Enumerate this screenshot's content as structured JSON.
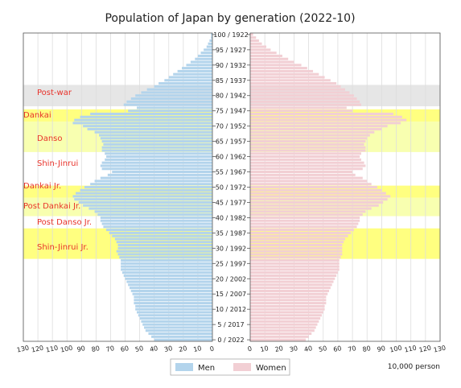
{
  "chart_data": {
    "type": "bar",
    "title": "Population of Japan by generation (2022-10)",
    "unit": "10,000 person",
    "series": [
      {
        "name": "Men",
        "color": "#b3d4ec"
      },
      {
        "name": "Women",
        "color": "#f2cfd4"
      }
    ],
    "axis_ticks": [
      0,
      10,
      20,
      30,
      40,
      50,
      60,
      70,
      80,
      90,
      100,
      110,
      120,
      130
    ],
    "xlim": [
      0,
      130
    ],
    "age_labels": [
      {
        "age": 100,
        "label": "100 / 1922"
      },
      {
        "age": 95,
        "label": "95  / 1927"
      },
      {
        "age": 90,
        "label": "90  / 1932"
      },
      {
        "age": 85,
        "label": "85  / 1937"
      },
      {
        "age": 80,
        "label": "80  / 1942"
      },
      {
        "age": 75,
        "label": "75  / 1947"
      },
      {
        "age": 70,
        "label": "70  / 1952"
      },
      {
        "age": 65,
        "label": "65  / 1957"
      },
      {
        "age": 60,
        "label": "60  / 1962"
      },
      {
        "age": 55,
        "label": "55  / 1967"
      },
      {
        "age": 50,
        "label": "50  / 1972"
      },
      {
        "age": 45,
        "label": "45  / 1977"
      },
      {
        "age": 40,
        "label": "40  / 1982"
      },
      {
        "age": 35,
        "label": "35  / 1987"
      },
      {
        "age": 30,
        "label": "30  / 1992"
      },
      {
        "age": 25,
        "label": "25  / 1997"
      },
      {
        "age": 20,
        "label": "20  / 2002"
      },
      {
        "age": 15,
        "label": "15  / 2007"
      },
      {
        "age": 10,
        "label": "10  / 2012"
      },
      {
        "age": 5,
        "label": "5  / 2017"
      },
      {
        "age": 0,
        "label": "0  / 2022"
      }
    ],
    "generations": [
      {
        "name": "Post-war",
        "age_from": 77,
        "age_to": 83,
        "band_color": "#e6e6e6"
      },
      {
        "name": "Dankai",
        "age_from": 72,
        "age_to": 75,
        "band_color": "#ffff80"
      },
      {
        "name": "Danso",
        "age_from": 62,
        "age_to": 71,
        "band_color": "#f8ffb0"
      },
      {
        "name": "Shin-Jinrui",
        "age_from": 0,
        "age_to": 0,
        "band_color": ""
      },
      {
        "name": "Dankai Jr.",
        "age_from": 47,
        "age_to": 50,
        "band_color": "#ffff80"
      },
      {
        "name": "Post Dankai Jr.",
        "age_from": 41,
        "age_to": 46,
        "band_color": "#f8ffb0"
      },
      {
        "name": "Post Danso Jr.",
        "age_from": 0,
        "age_to": 0,
        "band_color": ""
      },
      {
        "name": "Shin-Jinrui Jr.",
        "age_from": 27,
        "age_to": 36,
        "band_color": "#ffff80"
      }
    ],
    "men": [
      40,
      42,
      44,
      46,
      47,
      48,
      49,
      50,
      51,
      52,
      53,
      53,
      54,
      54,
      54,
      55,
      56,
      57,
      58,
      59,
      60,
      61,
      62,
      63,
      63,
      63,
      63,
      64,
      65,
      66,
      65,
      65,
      66,
      67,
      69,
      71,
      73,
      75,
      76,
      77,
      77,
      79,
      81,
      85,
      89,
      92,
      95,
      96,
      94,
      91,
      88,
      84,
      81,
      77,
      72,
      69,
      76,
      77,
      76,
      74,
      73,
      74,
      76,
      76,
      75,
      76,
      77,
      78,
      81,
      86,
      89,
      96,
      95,
      91,
      84,
      58,
      52,
      61,
      59,
      56,
      53,
      49,
      45,
      40,
      37,
      33,
      30,
      27,
      24,
      21,
      18,
      15,
      12,
      10,
      8,
      6,
      4,
      3,
      2,
      1,
      1
    ],
    "women": [
      38,
      40,
      42,
      44,
      45,
      46,
      47,
      48,
      49,
      50,
      51,
      51,
      52,
      52,
      52,
      53,
      54,
      55,
      56,
      57,
      58,
      59,
      60,
      61,
      61,
      61,
      61,
      62,
      63,
      63,
      63,
      63,
      64,
      65,
      67,
      69,
      71,
      73,
      74,
      75,
      75,
      77,
      79,
      83,
      88,
      91,
      94,
      96,
      93,
      90,
      87,
      83,
      80,
      77,
      72,
      70,
      77,
      79,
      78,
      76,
      75,
      76,
      79,
      79,
      78,
      79,
      80,
      82,
      85,
      90,
      94,
      103,
      107,
      104,
      98,
      70,
      66,
      76,
      75,
      73,
      71,
      68,
      65,
      62,
      59,
      55,
      51,
      47,
      43,
      39,
      35,
      30,
      26,
      22,
      18,
      14,
      11,
      8,
      6,
      4,
      2
    ]
  }
}
